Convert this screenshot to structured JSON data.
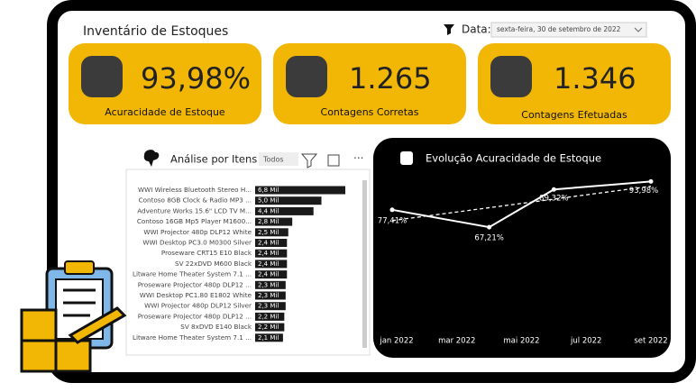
{
  "header": {
    "title": "Inventário de Estoques",
    "filter_label": "Data:",
    "filter_value": "sexta-feira, 30 de setembro de 2022"
  },
  "kpis": [
    {
      "value": "93,98%",
      "label": "Acuracidade de Estoque"
    },
    {
      "value": "1.265",
      "label": "Contagens Corretas"
    },
    {
      "value": "1.346",
      "label": "Contagens Efetuadas"
    }
  ],
  "items_panel": {
    "title": "Análise por Itens",
    "slicer": "Todos",
    "type": "bar",
    "color": "#1a1a1a",
    "categories": [
      "WWI Wireless Bluetooth Stereo H...",
      "Contoso 8GB Clock & Radio MP3 ...",
      "Adventure Works 15.6\" LCD TV M...",
      "Contoso 16GB Mp5 Player M1600...",
      "WWI Projector 480p DLP12 White",
      "WWI Desktop PC3.0 M0300 Silver",
      "Proseware CRT15 E10 Black",
      "SV 22xDVD M600 Black",
      "Litware Home Theater System 7.1 ...",
      "Proseware Projector 480p DLP12 ...",
      "WWI Desktop PC1.80 E1802 White",
      "WWI Projector 480p DLP12 Silver",
      "Proseware Projector 480p DLP12 ...",
      "SV 8xDVD E140 Black",
      "Litware Home Theater System 7.1 ..."
    ],
    "values": [
      6.8,
      5.0,
      4.4,
      2.8,
      2.5,
      2.4,
      2.4,
      2.4,
      2.4,
      2.3,
      2.3,
      2.3,
      2.2,
      2.2,
      2.1
    ],
    "value_labels": [
      "6,8 Mil",
      "5,0 Mil",
      "4,4 Mil",
      "2,8 Mil",
      "2,5 Mil",
      "2,4 Mil",
      "2,4 Mil",
      "2,4 Mil",
      "2,4 Mil",
      "2,3 Mil",
      "2,3 Mil",
      "2,3 Mil",
      "2,2 Mil",
      "2,2 Mil",
      "2,1 Mil"
    ],
    "xlim": [
      0,
      6.8
    ]
  },
  "line_chart": {
    "type": "line",
    "title": "Evolução Acuracidade de Estoque",
    "color": "#ffffff",
    "categories": [
      "jan 2022",
      null,
      "mar 2022",
      null,
      "mai 2022",
      null,
      "jul 2022",
      null,
      "set 2022"
    ],
    "values": [
      77.41,
      74.01,
      70.61,
      67.21,
      78.27,
      89.32,
      90.87,
      92.43,
      93.98
    ],
    "value_labels": [
      "77,41%",
      null,
      null,
      "67,21%",
      null,
      "89,32%",
      null,
      null,
      "93,98%"
    ],
    "trend_values": [
      71.1,
      91.2
    ],
    "ylim": [
      62,
      100
    ]
  }
}
